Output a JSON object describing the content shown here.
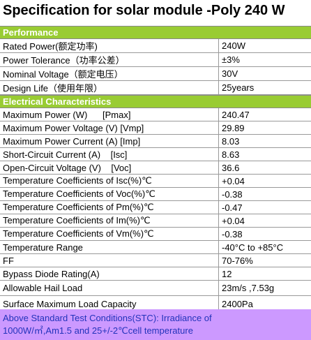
{
  "title": "Specification for solar module -Poly 240 W",
  "sections": [
    {
      "header": "Performance",
      "rows": [
        [
          "Rated Power(额定功率)",
          "240W"
        ],
        [
          "Power Tolerance（功率公差）",
          "±3%"
        ],
        [
          "Nominal Voltage（额定电压）",
          "30V"
        ],
        [
          "Design Life（使用年限）",
          "25years"
        ]
      ]
    },
    {
      "header": "Electrical Characteristics",
      "rows": [
        [
          "Maximum Power (W)      [Pmax]",
          "240.47"
        ],
        [
          "Maximum Power Voltage (V) [Vmp]",
          "29.89"
        ],
        [
          "Maximum Power Current (A) [Imp]",
          "8.03"
        ],
        [
          "Short-Circuit Current (A)    [Isc]",
          "8.63"
        ],
        [
          "Open-Circuit Voltage (V)    [Voc]",
          "36.6"
        ],
        [
          "Temperature Coefficients of Isc(%)℃",
          "+0.04"
        ],
        [
          "Temperature Coefficients of Voc(%)℃",
          "-0.38"
        ],
        [
          "Temperature Coefficients of Pm(%)℃",
          "-0.47"
        ],
        [
          "Temperature Coefficients of Im(%)℃",
          "+0.04"
        ],
        [
          "Temperature Coefficients of Vm(%)℃",
          "-0.38"
        ],
        [
          "Temperature Range",
          "-40°C to +85°C"
        ],
        [
          "FF",
          "70-76%"
        ],
        [
          "Bypass Diode Rating(A)",
          "12"
        ],
        [
          "Allowable Hail Load",
          "23m/s ,7.53g"
        ],
        [
          "Surface Maximum Load Capacity",
          "2400Pa"
        ]
      ]
    }
  ],
  "footer": [
    "Above Standard Test Conditions(STC): Irradiance of",
    "1000W/㎡,Am1.5 and 25+/-2℃cell temperature"
  ]
}
